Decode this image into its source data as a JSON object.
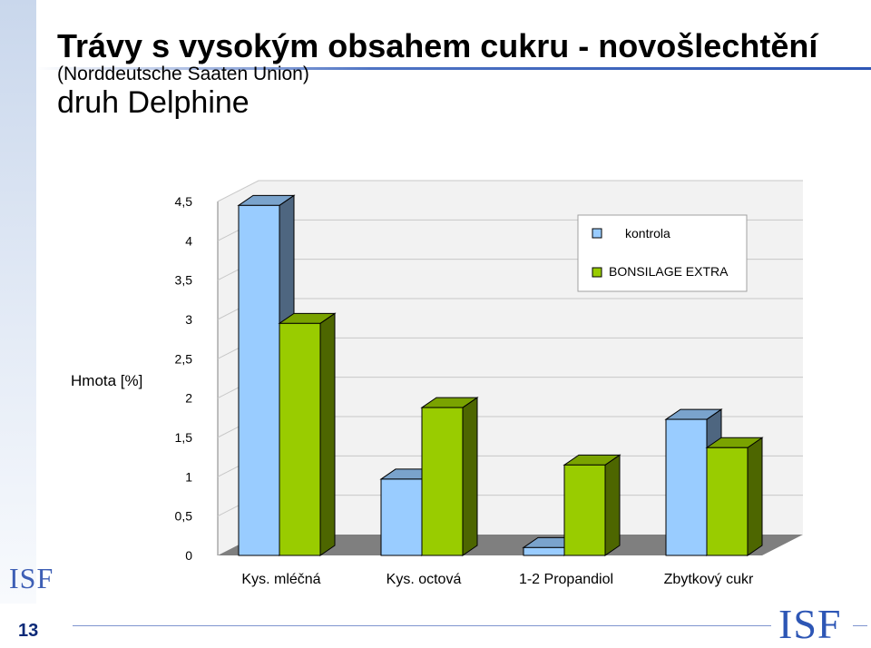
{
  "slide": {
    "title": "Trávy s vysokým obsahem cukru - novošlechtění",
    "subtitle": "(Norddeutsche Saaten Union)",
    "variety": "druh Delphine",
    "page_number": "13",
    "logo_text": "ISF"
  },
  "chart_data": {
    "type": "bar",
    "categories": [
      "Kys. mléčná",
      "Kys. octová",
      "1-2 Propandiol",
      "Zbytkový cukr"
    ],
    "series": [
      {
        "name": "kontrola",
        "values": [
          4.45,
          0.97,
          0.1,
          1.73
        ],
        "color": "#99ccff",
        "side_color": "#4e6680",
        "top_color": "#7aa3cc"
      },
      {
        "name": "BONSILAGE EXTRA",
        "values": [
          2.95,
          1.88,
          1.15,
          1.37
        ],
        "color": "#99cc00",
        "side_color": "#4d6600",
        "top_color": "#7aa300"
      }
    ],
    "y_ticks": [
      "0",
      "0,5",
      "1",
      "1,5",
      "2",
      "2,5",
      "3",
      "3,5",
      "4",
      "4,5"
    ],
    "ylabel": "Hmota [%]",
    "ylim": [
      0,
      4.5
    ],
    "grid": true,
    "legend_position": "top-right"
  }
}
